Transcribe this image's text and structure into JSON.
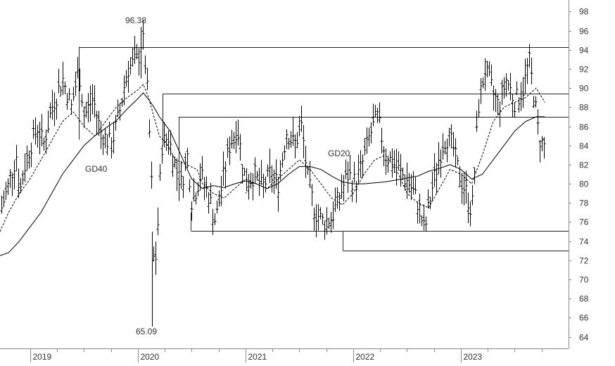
{
  "chart_data": {
    "type": "line",
    "title": "",
    "xlabel": "",
    "ylabel": "",
    "x_tick_labels": [
      "2019",
      "2020",
      "2021",
      "2022",
      "2023"
    ],
    "y_ticks": [
      64,
      66,
      68,
      70,
      72,
      74,
      76,
      78,
      80,
      82,
      84,
      86,
      88,
      90,
      92,
      94,
      96,
      98
    ],
    "ylim": [
      62.8,
      99.2
    ],
    "xlim": [
      2018.72,
      2024.0
    ],
    "grid": false,
    "annotations": [
      {
        "text": "96.38",
        "x": 2020.02,
        "y": 96.38
      },
      {
        "text": "65.09",
        "x": 2020.12,
        "y": 65.09
      }
    ],
    "series": [
      {
        "name": "GD20",
        "style": "dashed",
        "x": [
          2018.72,
          2018.8,
          2018.9,
          2019.0,
          2019.1,
          2019.2,
          2019.3,
          2019.4,
          2019.5,
          2019.6,
          2019.7,
          2019.8,
          2019.9,
          2020.0,
          2020.05,
          2020.1,
          2020.15,
          2020.2,
          2020.28,
          2020.35,
          2020.45,
          2020.55,
          2020.6,
          2020.7,
          2020.8,
          2020.9,
          2021.0,
          2021.1,
          2021.2,
          2021.3,
          2021.4,
          2021.5,
          2021.6,
          2021.7,
          2021.8,
          2021.9,
          2022.0,
          2022.1,
          2022.2,
          2022.3,
          2022.4,
          2022.5,
          2022.6,
          2022.7,
          2022.8,
          2022.9,
          2023.0,
          2023.1,
          2023.2,
          2023.3,
          2023.4,
          2023.5,
          2023.6,
          2023.7,
          2023.78
        ],
        "values": [
          75.0,
          77.0,
          79.0,
          80.5,
          82.5,
          84.5,
          86.5,
          87.5,
          86.0,
          85.0,
          86.5,
          88.0,
          89.0,
          89.8,
          90.4,
          89.0,
          87.0,
          85.0,
          84.0,
          82.5,
          82.0,
          81.5,
          80.0,
          79.0,
          78.5,
          79.5,
          80.5,
          80.0,
          79.5,
          80.5,
          81.5,
          82.5,
          81.5,
          80.0,
          78.5,
          77.8,
          79.0,
          81.0,
          82.5,
          83.0,
          81.5,
          79.0,
          78.0,
          77.5,
          79.5,
          81.5,
          81.0,
          80.0,
          83.0,
          86.5,
          88.0,
          88.5,
          89.0,
          90.0,
          88.5
        ]
      },
      {
        "name": "GD40",
        "style": "solid",
        "x": [
          2018.72,
          2018.8,
          2018.9,
          2019.0,
          2019.1,
          2019.2,
          2019.3,
          2019.4,
          2019.5,
          2019.6,
          2019.7,
          2019.8,
          2019.9,
          2020.0,
          2020.05,
          2020.1,
          2020.15,
          2020.2,
          2020.3,
          2020.4,
          2020.5,
          2020.6,
          2020.7,
          2020.8,
          2020.9,
          2021.0,
          2021.1,
          2021.2,
          2021.3,
          2021.4,
          2021.5,
          2021.6,
          2021.7,
          2021.8,
          2021.9,
          2022.0,
          2022.1,
          2022.2,
          2022.3,
          2022.4,
          2022.5,
          2022.6,
          2022.7,
          2022.8,
          2022.9,
          2023.0,
          2023.1,
          2023.2,
          2023.3,
          2023.4,
          2023.5,
          2023.6,
          2023.7,
          2023.78
        ],
        "values": [
          72.5,
          72.8,
          74.0,
          75.5,
          77.0,
          79.0,
          81.0,
          82.5,
          84.0,
          85.0,
          85.8,
          86.6,
          87.8,
          88.9,
          89.5,
          88.8,
          88.0,
          87.0,
          85.5,
          83.0,
          80.5,
          79.5,
          79.8,
          79.6,
          80.0,
          80.3,
          80.0,
          79.5,
          80.0,
          81.0,
          81.8,
          81.8,
          81.5,
          80.8,
          80.2,
          80.0,
          80.0,
          80.1,
          80.2,
          80.4,
          80.6,
          80.8,
          81.3,
          81.6,
          82.0,
          81.5,
          80.5,
          81.0,
          82.5,
          84.0,
          85.5,
          86.5,
          87.0,
          87.0
        ]
      }
    ],
    "levels": [
      {
        "y": 94.3,
        "x0": 2019.45,
        "x1": 2024.0
      },
      {
        "y": 89.4,
        "x0": 2020.23,
        "x1": 2024.0
      },
      {
        "y": 87.0,
        "x0": 2020.38,
        "x1": 2024.0
      },
      {
        "y": 75.1,
        "x0": 2020.49,
        "x1": 2024.0
      },
      {
        "y": 73.0,
        "x0": 2021.9,
        "x1": 2024.0
      }
    ],
    "colors": {
      "price": "#000000",
      "axis": "#888888",
      "text": "#333333"
    }
  }
}
